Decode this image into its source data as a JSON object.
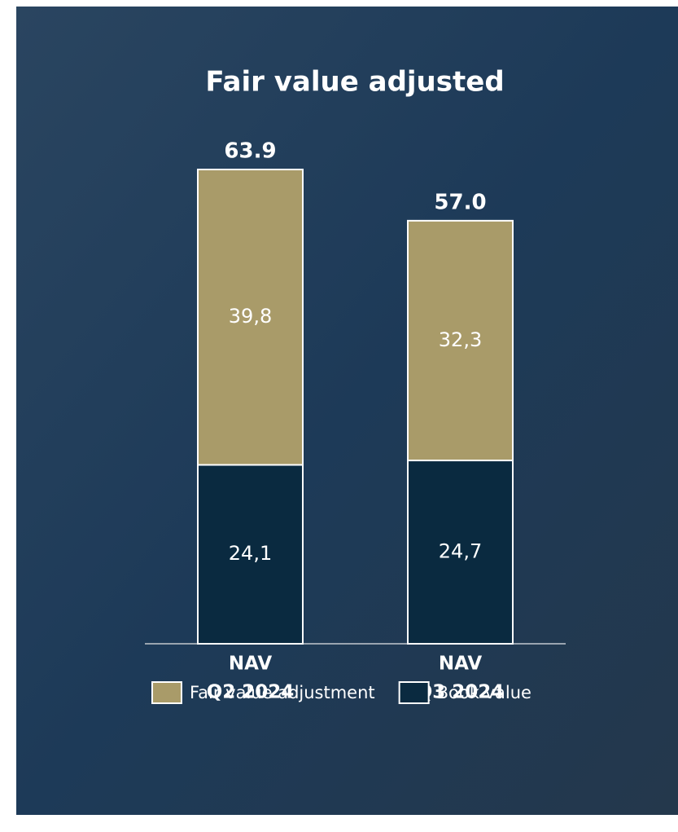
{
  "chart_data": {
    "type": "stacked_bar",
    "title": "Fair value adjusted",
    "categories": [
      [
        "NAV",
        "Q2 2024"
      ],
      [
        "NAV",
        "Q3 2024"
      ]
    ],
    "series": [
      {
        "name": "Fair value adjustment",
        "color": "#a99b69",
        "values": [
          39.8,
          32.3
        ],
        "value_labels": [
          "39,8",
          "32,3"
        ]
      },
      {
        "name": "Book value",
        "color": "#0a2a40",
        "values": [
          24.1,
          24.7
        ],
        "value_labels": [
          "24,1",
          "24,7"
        ]
      }
    ],
    "totals": [
      63.9,
      57.0
    ],
    "total_labels": [
      "63.9",
      "57.0"
    ]
  }
}
